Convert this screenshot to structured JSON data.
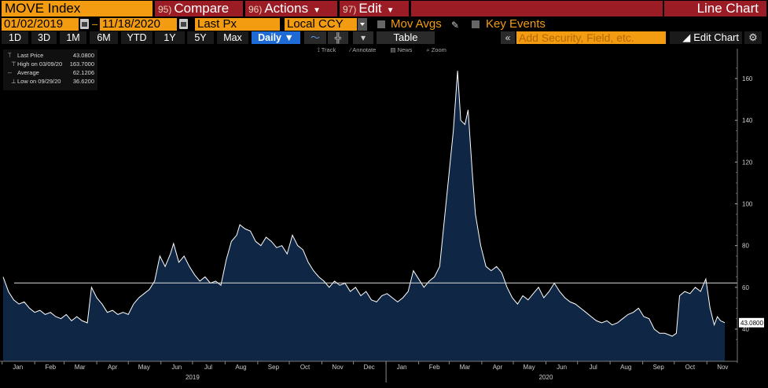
{
  "header": {
    "ticker": "MOVE Index",
    "compare": {
      "num": "95)",
      "label": "Compare"
    },
    "actions": {
      "num": "96)",
      "label": "Actions"
    },
    "edit": {
      "num": "97)",
      "label": "Edit"
    },
    "chart_type": "Line Chart"
  },
  "options": {
    "start_date": "01/02/2019",
    "end_date": "11/18/2020",
    "field": "Last Px",
    "currency": "Local CCY",
    "mov_avgs": "Mov Avgs",
    "key_events": "Key Events"
  },
  "periods": [
    "1D",
    "3D",
    "1M",
    "6M",
    "YTD",
    "1Y",
    "5Y",
    "Max"
  ],
  "frequency": "Daily",
  "table_label": "Table",
  "add_security_placeholder": "Add Security, Field, etc.",
  "edit_chart_label": "Edit Chart",
  "toolbar": {
    "track": "Track",
    "annotate": "Annotate",
    "news": "News",
    "zoom": "Zoom"
  },
  "legend": {
    "last_price": {
      "label": "Last Price",
      "value": "43.0800"
    },
    "high": {
      "label": "High on 03/09/20",
      "value": "163.7000"
    },
    "average": {
      "label": "Average",
      "value": "62.1206"
    },
    "low": {
      "label": "Low on 09/29/20",
      "value": "36.6200"
    }
  },
  "colors": {
    "orange": "#f39c12",
    "red": "#9b1c24",
    "fill": "#0f2744",
    "line": "#ffffff",
    "selected": "#1e6bd6"
  },
  "chart_data": {
    "type": "area",
    "title": "",
    "xlabel": "",
    "ylabel": "",
    "ylim": [
      30,
      170
    ],
    "yticks": [
      40,
      60,
      80,
      100,
      120,
      140,
      160
    ],
    "month_ticks": [
      "Jan",
      "Feb",
      "Mar",
      "Apr",
      "May",
      "Jun",
      "Jul",
      "Aug",
      "Sep",
      "Oct",
      "Nov",
      "Dec",
      "Jan",
      "Feb",
      "Mar",
      "Apr",
      "May",
      "Jun",
      "Jul",
      "Aug",
      "Sep",
      "Oct",
      "Nov"
    ],
    "years": [
      "2019",
      "2020"
    ],
    "average_line": 62.1206,
    "last_value_label": "43.0800",
    "x_start": "2019-01-02",
    "series": [
      {
        "values": [
          [
            "2019-01-02",
            65
          ],
          [
            "2019-01-07",
            58
          ],
          [
            "2019-01-12",
            54
          ],
          [
            "2019-01-17",
            52
          ],
          [
            "2019-01-22",
            53
          ],
          [
            "2019-01-27",
            50
          ],
          [
            "2019-02-01",
            48
          ],
          [
            "2019-02-06",
            49
          ],
          [
            "2019-02-11",
            47
          ],
          [
            "2019-02-16",
            48
          ],
          [
            "2019-02-21",
            46
          ],
          [
            "2019-02-26",
            45
          ],
          [
            "2019-03-03",
            47
          ],
          [
            "2019-03-08",
            44
          ],
          [
            "2019-03-13",
            46
          ],
          [
            "2019-03-18",
            44
          ],
          [
            "2019-03-23",
            43
          ],
          [
            "2019-03-27",
            60
          ],
          [
            "2019-04-01",
            55
          ],
          [
            "2019-04-06",
            52
          ],
          [
            "2019-04-11",
            48
          ],
          [
            "2019-04-16",
            49
          ],
          [
            "2019-04-21",
            47
          ],
          [
            "2019-04-26",
            48
          ],
          [
            "2019-05-01",
            47
          ],
          [
            "2019-05-06",
            52
          ],
          [
            "2019-05-11",
            55
          ],
          [
            "2019-05-16",
            57
          ],
          [
            "2019-05-21",
            59
          ],
          [
            "2019-05-26",
            63
          ],
          [
            "2019-05-31",
            75
          ],
          [
            "2019-06-05",
            70
          ],
          [
            "2019-06-10",
            76
          ],
          [
            "2019-06-13",
            81
          ],
          [
            "2019-06-18",
            72
          ],
          [
            "2019-06-23",
            75
          ],
          [
            "2019-06-28",
            70
          ],
          [
            "2019-07-03",
            66
          ],
          [
            "2019-07-08",
            63
          ],
          [
            "2019-07-13",
            65
          ],
          [
            "2019-07-18",
            62
          ],
          [
            "2019-07-23",
            63
          ],
          [
            "2019-07-28",
            61
          ],
          [
            "2019-08-02",
            73
          ],
          [
            "2019-08-07",
            82
          ],
          [
            "2019-08-12",
            85
          ],
          [
            "2019-08-15",
            90
          ],
          [
            "2019-08-20",
            88
          ],
          [
            "2019-08-25",
            87
          ],
          [
            "2019-08-30",
            82
          ],
          [
            "2019-09-04",
            80
          ],
          [
            "2019-09-09",
            84
          ],
          [
            "2019-09-14",
            82
          ],
          [
            "2019-09-19",
            79
          ],
          [
            "2019-09-24",
            80
          ],
          [
            "2019-09-29",
            76
          ],
          [
            "2019-10-04",
            85
          ],
          [
            "2019-10-09",
            80
          ],
          [
            "2019-10-14",
            78
          ],
          [
            "2019-10-19",
            72
          ],
          [
            "2019-10-24",
            68
          ],
          [
            "2019-10-29",
            65
          ],
          [
            "2019-11-03",
            63
          ],
          [
            "2019-11-08",
            60
          ],
          [
            "2019-11-13",
            63
          ],
          [
            "2019-11-18",
            61
          ],
          [
            "2019-11-23",
            62
          ],
          [
            "2019-11-28",
            58
          ],
          [
            "2019-12-03",
            60
          ],
          [
            "2019-12-08",
            56
          ],
          [
            "2019-12-13",
            58
          ],
          [
            "2019-12-18",
            54
          ],
          [
            "2019-12-23",
            53
          ],
          [
            "2019-12-28",
            56
          ],
          [
            "2020-01-02",
            57
          ],
          [
            "2020-01-07",
            55
          ],
          [
            "2020-01-12",
            53
          ],
          [
            "2020-01-17",
            55
          ],
          [
            "2020-01-22",
            58
          ],
          [
            "2020-01-27",
            68
          ],
          [
            "2020-02-01",
            64
          ],
          [
            "2020-02-06",
            60
          ],
          [
            "2020-02-11",
            63
          ],
          [
            "2020-02-16",
            65
          ],
          [
            "2020-02-21",
            70
          ],
          [
            "2020-02-26",
            95
          ],
          [
            "2020-03-02",
            120
          ],
          [
            "2020-03-05",
            135
          ],
          [
            "2020-03-09",
            163.7
          ],
          [
            "2020-03-12",
            140
          ],
          [
            "2020-03-16",
            138
          ],
          [
            "2020-03-19",
            145
          ],
          [
            "2020-03-23",
            115
          ],
          [
            "2020-03-26",
            95
          ],
          [
            "2020-03-31",
            80
          ],
          [
            "2020-04-05",
            70
          ],
          [
            "2020-04-10",
            68
          ],
          [
            "2020-04-15",
            70
          ],
          [
            "2020-04-20",
            67
          ],
          [
            "2020-04-25",
            60
          ],
          [
            "2020-04-30",
            55
          ],
          [
            "2020-05-05",
            52
          ],
          [
            "2020-05-10",
            56
          ],
          [
            "2020-05-15",
            54
          ],
          [
            "2020-05-20",
            57
          ],
          [
            "2020-05-25",
            60
          ],
          [
            "2020-05-30",
            55
          ],
          [
            "2020-06-04",
            58
          ],
          [
            "2020-06-09",
            62
          ],
          [
            "2020-06-14",
            58
          ],
          [
            "2020-06-19",
            55
          ],
          [
            "2020-06-24",
            53
          ],
          [
            "2020-06-29",
            52
          ],
          [
            "2020-07-04",
            50
          ],
          [
            "2020-07-09",
            48
          ],
          [
            "2020-07-14",
            46
          ],
          [
            "2020-07-19",
            44
          ],
          [
            "2020-07-24",
            43
          ],
          [
            "2020-07-29",
            44
          ],
          [
            "2020-08-03",
            42
          ],
          [
            "2020-08-08",
            43
          ],
          [
            "2020-08-13",
            45
          ],
          [
            "2020-08-18",
            47
          ],
          [
            "2020-08-23",
            48
          ],
          [
            "2020-08-28",
            50
          ],
          [
            "2020-09-02",
            46
          ],
          [
            "2020-09-07",
            45
          ],
          [
            "2020-09-12",
            40
          ],
          [
            "2020-09-17",
            38
          ],
          [
            "2020-09-22",
            38
          ],
          [
            "2020-09-29",
            36.62
          ],
          [
            "2020-10-03",
            38
          ],
          [
            "2020-10-06",
            56
          ],
          [
            "2020-10-11",
            58
          ],
          [
            "2020-10-16",
            57
          ],
          [
            "2020-10-21",
            60
          ],
          [
            "2020-10-26",
            58
          ],
          [
            "2020-10-31",
            64
          ],
          [
            "2020-11-04",
            50
          ],
          [
            "2020-11-08",
            42
          ],
          [
            "2020-11-11",
            46
          ],
          [
            "2020-11-14",
            44
          ],
          [
            "2020-11-18",
            43.08
          ]
        ]
      }
    ]
  }
}
